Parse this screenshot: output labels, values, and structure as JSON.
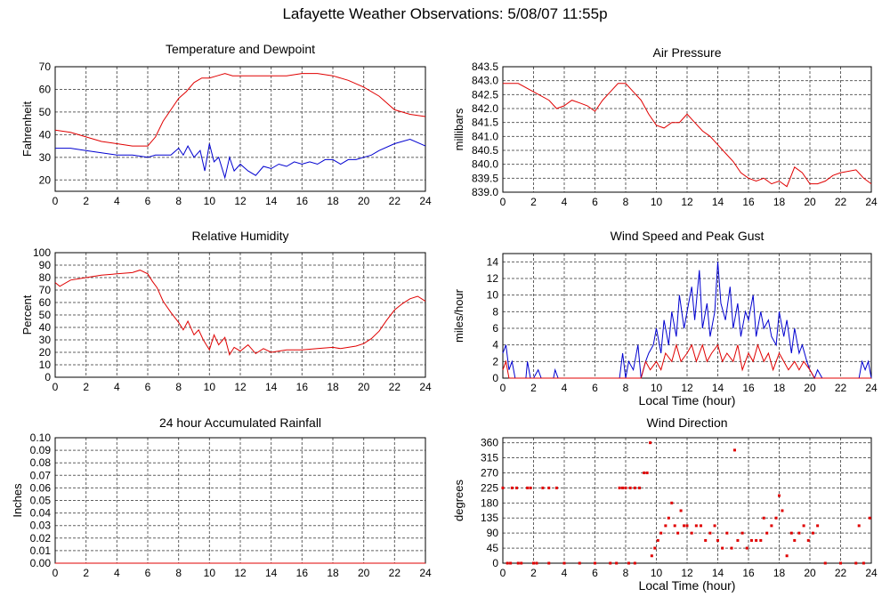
{
  "page": {
    "title": "Lafayette Weather Observations: 5/08/07 11:55p"
  },
  "colors": {
    "red": "#e00000",
    "blue": "#0000d0",
    "grid": "#606060",
    "axis": "#000000"
  },
  "chart_data": [
    {
      "id": "temp",
      "type": "line",
      "title": "Temperature and Dewpoint",
      "xlabel": "",
      "ylabel": "Fahrenheit",
      "xlim": [
        0,
        24
      ],
      "ylim": [
        15,
        70
      ],
      "xticks": [
        0,
        2,
        4,
        6,
        8,
        10,
        12,
        14,
        16,
        18,
        20,
        22,
        24
      ],
      "yticks": [
        20,
        30,
        40,
        50,
        60,
        70
      ],
      "grid": true,
      "series": [
        {
          "color": "red",
          "x": [
            0,
            1,
            2,
            3,
            4,
            5,
            6,
            6.5,
            7,
            7.5,
            8,
            8.5,
            9,
            9.5,
            10,
            10.5,
            11,
            11.5,
            12,
            13,
            14,
            15,
            16,
            17,
            18,
            19,
            20,
            21,
            22,
            23,
            24
          ],
          "y": [
            42,
            41,
            39,
            37,
            36,
            35,
            35,
            39,
            46,
            51,
            56,
            59,
            63,
            65,
            65,
            66,
            67,
            66,
            66,
            66,
            66,
            66,
            67,
            67,
            66,
            64,
            61,
            57,
            51,
            49,
            48
          ]
        },
        {
          "color": "blue",
          "x": [
            0,
            1,
            2,
            3,
            4,
            5,
            6,
            6.5,
            7,
            7.5,
            8,
            8.3,
            8.6,
            9,
            9.4,
            9.7,
            10,
            10.3,
            10.6,
            11,
            11.3,
            11.6,
            12,
            12.5,
            13,
            13.5,
            14,
            14.5,
            15,
            15.5,
            16,
            16.5,
            17,
            17.5,
            18,
            18.5,
            19,
            19.5,
            20,
            20.5,
            21,
            22,
            23,
            24
          ],
          "y": [
            34,
            34,
            33,
            32,
            31,
            31,
            30,
            31,
            31,
            31,
            34,
            31,
            35,
            30,
            33,
            24,
            36,
            28,
            30,
            21,
            30,
            24,
            27,
            24,
            22,
            26,
            25,
            27,
            26,
            28,
            27,
            28,
            27,
            29,
            29,
            27,
            29,
            29,
            30,
            31,
            33,
            36,
            38,
            35
          ]
        }
      ]
    },
    {
      "id": "pressure",
      "type": "line",
      "title": "Air Pressure",
      "xlabel": "",
      "ylabel": "millibars",
      "xlim": [
        0,
        24
      ],
      "ylim": [
        839.0,
        843.5
      ],
      "xticks": [
        0,
        2,
        4,
        6,
        8,
        10,
        12,
        14,
        16,
        18,
        20,
        22,
        24
      ],
      "yticks": [
        839.0,
        839.5,
        840.0,
        840.5,
        841.0,
        841.5,
        842.0,
        842.5,
        843.0,
        843.5
      ],
      "grid": true,
      "series": [
        {
          "color": "red",
          "x": [
            0,
            1,
            2,
            3,
            3.5,
            4,
            4.5,
            5,
            5.5,
            6,
            6.5,
            7,
            7.5,
            8,
            8.5,
            9,
            9.5,
            10,
            10.5,
            11,
            11.5,
            12,
            12.5,
            13,
            13.5,
            14,
            14.5,
            15,
            15.5,
            16,
            16.5,
            17,
            17.5,
            18,
            18.5,
            19,
            19.5,
            20,
            20.5,
            21,
            21.5,
            22,
            23,
            23.5,
            24
          ],
          "y": [
            842.9,
            842.9,
            842.6,
            842.3,
            842.0,
            842.1,
            842.3,
            842.2,
            842.1,
            841.9,
            842.3,
            842.6,
            842.9,
            842.9,
            842.6,
            842.3,
            841.8,
            841.4,
            841.3,
            841.5,
            841.5,
            841.8,
            841.5,
            841.2,
            841.0,
            840.7,
            840.4,
            840.1,
            839.7,
            839.5,
            839.4,
            839.5,
            839.3,
            839.4,
            839.2,
            839.9,
            839.7,
            839.3,
            839.3,
            839.4,
            839.6,
            839.7,
            839.8,
            839.5,
            839.3
          ]
        }
      ]
    },
    {
      "id": "humidity",
      "type": "line",
      "title": "Relative Humidity",
      "xlabel": "",
      "ylabel": "Percent",
      "xlim": [
        0,
        24
      ],
      "ylim": [
        0,
        100
      ],
      "xticks": [
        0,
        2,
        4,
        6,
        8,
        10,
        12,
        14,
        16,
        18,
        20,
        22,
        24
      ],
      "yticks": [
        0,
        10,
        20,
        30,
        40,
        50,
        60,
        70,
        80,
        90,
        100
      ],
      "grid": true,
      "series": [
        {
          "color": "red",
          "x": [
            0,
            0.3,
            1,
            2,
            3,
            4,
            5,
            5.5,
            6,
            6.3,
            6.6,
            7,
            7.5,
            8,
            8.3,
            8.6,
            9,
            9.3,
            9.6,
            10,
            10.3,
            10.6,
            11,
            11.3,
            11.6,
            12,
            12.5,
            13,
            13.5,
            14,
            15,
            16,
            17,
            18,
            18.5,
            19,
            19.5,
            20,
            20.5,
            21,
            21.5,
            22,
            22.5,
            23,
            23.5,
            24
          ],
          "y": [
            76,
            73,
            78,
            80,
            82,
            83,
            84,
            86,
            83,
            77,
            72,
            61,
            52,
            44,
            38,
            45,
            34,
            38,
            30,
            22,
            34,
            26,
            32,
            18,
            24,
            21,
            26,
            19,
            23,
            20,
            22,
            22,
            23,
            24,
            23,
            24,
            25,
            27,
            31,
            37,
            46,
            54,
            59,
            63,
            65,
            61
          ]
        }
      ]
    },
    {
      "id": "wind",
      "type": "line",
      "title": "Wind Speed and Peak Gust",
      "xlabel": "Local Time (hour)",
      "ylabel": "miles/hour",
      "xlim": [
        0,
        24
      ],
      "ylim": [
        0,
        15
      ],
      "xticks": [
        0,
        2,
        4,
        6,
        8,
        10,
        12,
        14,
        16,
        18,
        20,
        22,
        24
      ],
      "yticks": [
        0,
        2,
        4,
        6,
        8,
        10,
        12,
        14
      ],
      "grid": true,
      "series": [
        {
          "color": "blue",
          "x": [
            0,
            0.2,
            0.4,
            0.6,
            0.8,
            1.0,
            1.5,
            1.6,
            1.8,
            2.0,
            2.3,
            2.5,
            3.3,
            3.4,
            3.6,
            7.6,
            7.8,
            8.0,
            8.2,
            8.5,
            8.8,
            9.0,
            9.3,
            9.5,
            9.8,
            10.0,
            10.3,
            10.5,
            10.8,
            11.0,
            11.3,
            11.5,
            11.8,
            12.0,
            12.3,
            12.5,
            12.8,
            13.0,
            13.3,
            13.5,
            13.8,
            14.0,
            14.2,
            14.5,
            14.8,
            15.0,
            15.3,
            15.5,
            15.8,
            16.0,
            16.3,
            16.5,
            16.8,
            17.0,
            17.3,
            17.5,
            17.8,
            18.0,
            18.3,
            18.5,
            18.8,
            19.0,
            19.3,
            19.5,
            19.8,
            20.0,
            20.3,
            20.5,
            20.8,
            21.0,
            23.2,
            23.4,
            23.6,
            23.8,
            24.0
          ],
          "y": [
            3,
            4,
            1,
            2,
            0,
            0,
            0,
            2,
            0,
            0,
            1,
            0,
            0,
            1,
            0,
            0,
            3,
            0,
            2,
            1,
            4,
            0,
            2,
            3,
            4,
            6,
            3,
            7,
            4,
            8,
            5,
            10,
            6,
            8,
            11,
            7,
            13,
            6,
            9,
            5,
            8,
            14,
            9,
            7,
            11,
            6,
            9,
            5,
            8,
            7,
            10,
            5,
            8,
            6,
            7,
            5,
            4,
            8,
            5,
            7,
            3,
            6,
            3,
            4,
            2,
            1,
            0,
            1,
            0,
            0,
            0,
            2,
            1,
            2,
            0
          ]
        },
        {
          "color": "red",
          "x": [
            0,
            0.2,
            0.4,
            9.0,
            9.3,
            9.6,
            10.0,
            10.3,
            10.6,
            11.0,
            11.3,
            11.6,
            12.0,
            12.3,
            12.6,
            13.0,
            13.3,
            13.6,
            14.0,
            14.3,
            14.6,
            15.0,
            15.3,
            15.6,
            16.0,
            16.3,
            16.6,
            17.0,
            17.3,
            17.6,
            18.0,
            18.3,
            18.6,
            19.0,
            19.3,
            19.6,
            20.0,
            20.3,
            24.0
          ],
          "y": [
            1,
            2,
            0,
            0,
            2,
            1,
            2,
            1,
            3,
            2,
            4,
            2,
            3,
            4,
            2,
            4,
            2,
            3,
            4,
            2,
            3,
            2,
            4,
            1,
            3,
            2,
            4,
            2,
            3,
            1,
            3,
            2,
            1,
            2,
            1,
            2,
            1,
            0,
            0
          ]
        }
      ]
    },
    {
      "id": "rain",
      "type": "line",
      "title": "24 hour Accumulated Rainfall",
      "xlabel": "",
      "ylabel": "Inches",
      "xlim": [
        0,
        24
      ],
      "ylim": [
        0,
        0.1
      ],
      "xticks": [
        0,
        2,
        4,
        6,
        8,
        10,
        12,
        14,
        16,
        18,
        20,
        22,
        24
      ],
      "yticks": [
        0.0,
        0.01,
        0.02,
        0.03,
        0.04,
        0.05,
        0.06,
        0.07,
        0.08,
        0.09,
        0.1
      ],
      "ytick_decimals": 2,
      "grid": true,
      "series": [
        {
          "color": "red",
          "x": [
            0,
            24
          ],
          "y": [
            0,
            0
          ]
        }
      ]
    },
    {
      "id": "direction",
      "type": "scatter",
      "title": "Wind Direction",
      "xlabel": "Local Time (hour)",
      "ylabel": "degrees",
      "xlim": [
        0,
        24
      ],
      "ylim": [
        0,
        375
      ],
      "xticks": [
        0,
        2,
        4,
        6,
        8,
        10,
        12,
        14,
        16,
        18,
        20,
        22,
        24
      ],
      "yticks": [
        0,
        45,
        90,
        135,
        180,
        225,
        270,
        315,
        360
      ],
      "grid": true,
      "series": [
        {
          "color": "red",
          "x": [
            0.0,
            0.3,
            0.6,
            0.9,
            1.2,
            1.6,
            1.8,
            2.2,
            2.6,
            3.0,
            3.5,
            7.6,
            7.8,
            8.0,
            8.3,
            8.6,
            8.9,
            9.2,
            9.4,
            9.6,
            9.7,
            9.9,
            10.1,
            10.3,
            10.6,
            10.8,
            11.0,
            11.2,
            11.4,
            11.6,
            11.8,
            12.0,
            12.3,
            12.6,
            12.9,
            13.2,
            13.5,
            13.8,
            14.0,
            14.3,
            14.6,
            14.9,
            15.1,
            15.3,
            15.6,
            15.9,
            16.2,
            16.5,
            16.8,
            17.0,
            17.2,
            17.5,
            17.8,
            18.0,
            18.2,
            18.5,
            18.8,
            19.0,
            19.3,
            19.6,
            19.9,
            20.2,
            20.5,
            23.2,
            23.5,
            23.9,
            0.5,
            1.0,
            2.0,
            3.0,
            4.0,
            5.0,
            6.0,
            7.0,
            7.4,
            8.2,
            8.6,
            21.0,
            22.0,
            23.0
          ],
          "y": [
            225,
            0,
            225,
            225,
            0,
            225,
            225,
            0,
            225,
            225,
            225,
            225,
            225,
            225,
            225,
            225,
            225,
            270,
            270,
            360,
            22,
            45,
            68,
            90,
            112,
            135,
            180,
            112,
            90,
            157,
            112,
            112,
            90,
            112,
            112,
            68,
            90,
            112,
            68,
            45,
            90,
            45,
            338,
            68,
            90,
            45,
            68,
            68,
            68,
            135,
            90,
            112,
            135,
            202,
            157,
            22,
            90,
            68,
            90,
            112,
            68,
            90,
            112,
            112,
            0,
            135,
            0,
            0,
            0,
            0,
            0,
            0,
            0,
            0,
            0,
            0,
            0,
            0,
            0,
            0
          ]
        }
      ]
    }
  ]
}
